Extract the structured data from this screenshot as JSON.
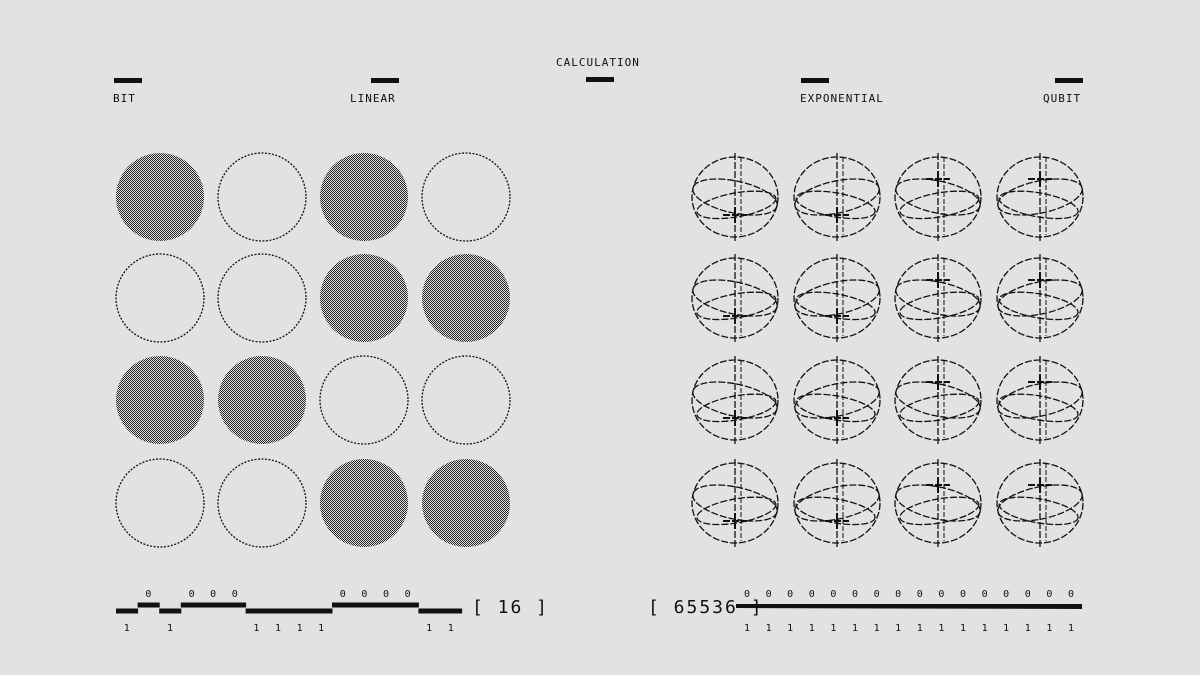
{
  "header": {
    "title": "CALCULATION",
    "labels": [
      "BIT",
      "LINEAR",
      "EXPONENTIAL",
      "QUBIT"
    ]
  },
  "bits": {
    "values": [
      1,
      0,
      1,
      0,
      0,
      0,
      1,
      1,
      1,
      1,
      0,
      0,
      0,
      0,
      1,
      1
    ],
    "count_label": "[ 16 ]"
  },
  "qubits": {
    "count": 16,
    "count_label": "[ 65536 ]",
    "zero_label": "0",
    "one_label": "1"
  },
  "colors": {
    "background": "#e2e2e2",
    "ink": "#111111"
  }
}
